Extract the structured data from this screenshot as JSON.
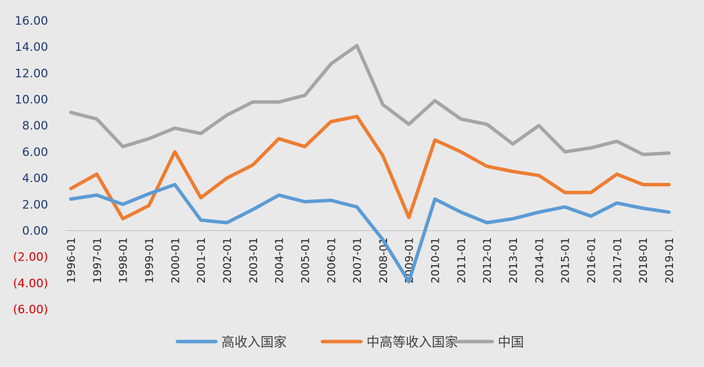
{
  "chart_data": {
    "type": "line",
    "title": "",
    "xlabel": "",
    "ylabel": "",
    "ylim": [
      -6,
      16
    ],
    "y_tick_step": 2,
    "y_ticks": [
      {
        "value": 16,
        "label": "16.00"
      },
      {
        "value": 14,
        "label": "14.00"
      },
      {
        "value": 12,
        "label": "12.00"
      },
      {
        "value": 10,
        "label": "10.00"
      },
      {
        "value": 8,
        "label": "8.00"
      },
      {
        "value": 6,
        "label": "6.00"
      },
      {
        "value": 4,
        "label": "4.00"
      },
      {
        "value": 2,
        "label": "2.00"
      },
      {
        "value": 0,
        "label": "0.00"
      },
      {
        "value": -2,
        "label": "(2.00)"
      },
      {
        "value": -4,
        "label": "(4.00)"
      },
      {
        "value": -6,
        "label": "(6.00)"
      }
    ],
    "negative_tick_color": "#d40000",
    "positive_tick_color": "#1f3a6e",
    "grid": false,
    "legend_position": "bottom",
    "categories": [
      "1996-01",
      "1997-01",
      "1998-01",
      "1999-01",
      "2000-01",
      "2001-01",
      "2002-01",
      "2003-01",
      "2004-01",
      "2005-01",
      "2006-01",
      "2007-01",
      "2008-01",
      "2009-01",
      "2010-01",
      "2011-01",
      "2012-01",
      "2013-01",
      "2014-01",
      "2015-01",
      "2016-01",
      "2017-01",
      "2018-01",
      "2019-01"
    ],
    "series": [
      {
        "name": "高收入国家",
        "color": "#5b9bd5",
        "values": [
          2.4,
          2.7,
          2.0,
          2.8,
          3.5,
          0.8,
          0.6,
          1.6,
          2.7,
          2.2,
          2.3,
          1.8,
          -0.7,
          -3.9,
          2.4,
          1.4,
          0.6,
          0.9,
          1.4,
          1.8,
          1.1,
          2.1,
          1.7,
          1.4
        ]
      },
      {
        "name": "中高等收入国家",
        "color": "#ed7d31",
        "values": [
          3.2,
          4.3,
          0.9,
          1.9,
          6.0,
          2.5,
          4.0,
          5.0,
          7.0,
          6.4,
          8.3,
          8.7,
          5.7,
          1.0,
          6.9,
          6.0,
          4.9,
          4.5,
          4.2,
          2.9,
          2.9,
          4.3,
          3.5,
          3.5
        ]
      },
      {
        "name": "中国",
        "color": "#a5a5a5",
        "values": [
          9.0,
          8.5,
          6.4,
          7.0,
          7.8,
          7.4,
          8.8,
          9.8,
          9.8,
          10.3,
          12.7,
          14.1,
          9.6,
          8.1,
          9.9,
          8.5,
          8.1,
          6.6,
          8.0,
          6.0,
          6.3,
          6.8,
          5.8,
          5.9
        ]
      }
    ]
  }
}
